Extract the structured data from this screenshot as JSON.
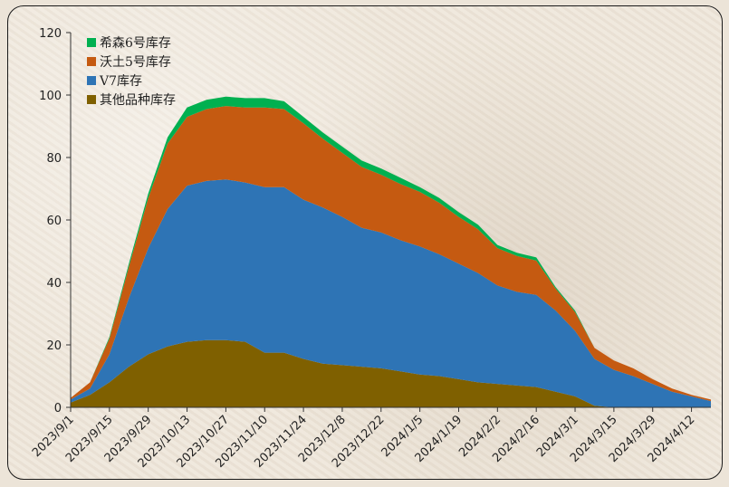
{
  "chart_data": {
    "type": "area",
    "stacked": true,
    "title": "",
    "xlabel": "",
    "ylabel": "",
    "ylim": [
      0,
      120
    ],
    "yticks": [
      0,
      20,
      40,
      60,
      80,
      100,
      120
    ],
    "grid": false,
    "legend_position": "top-left",
    "x": [
      "2023/9/1",
      "2023/9/8",
      "2023/9/15",
      "2023/9/22",
      "2023/9/29",
      "2023/10/6",
      "2023/10/13",
      "2023/10/20",
      "2023/10/27",
      "2023/11/3",
      "2023/11/10",
      "2023/11/17",
      "2023/11/24",
      "2023/12/1",
      "2023/12/8",
      "2023/12/15",
      "2023/12/22",
      "2023/12/29",
      "2024/1/5",
      "2024/1/12",
      "2024/1/19",
      "2024/1/26",
      "2024/2/2",
      "2024/2/9",
      "2024/2/16",
      "2024/2/23",
      "2024/3/1",
      "2024/3/8",
      "2024/3/15",
      "2024/3/22",
      "2024/3/29",
      "2024/4/5",
      "2024/4/12",
      "2024/4/19"
    ],
    "x_tick_labels": [
      "2023/9/1",
      "2023/9/15",
      "2023/9/29",
      "2023/10/13",
      "2023/10/27",
      "2023/11/10",
      "2023/11/24",
      "2023/12/8",
      "2023/12/22",
      "2024/1/5",
      "2024/1/19",
      "2024/2/2",
      "2024/2/16",
      "2024/3/1",
      "2024/3/15",
      "2024/3/29",
      "2024/4/12"
    ],
    "series": [
      {
        "name": "其他品种库存",
        "color": "#7f6000",
        "values": [
          1.5,
          4,
          8,
          13,
          17,
          19.5,
          21,
          21.5,
          21.5,
          21,
          17.5,
          17.5,
          15.5,
          14,
          13.5,
          13,
          12.5,
          11.5,
          10.5,
          10,
          9,
          8,
          7.5,
          7,
          6.5,
          5,
          3.5,
          0.5,
          0,
          0,
          0,
          0,
          0,
          0
        ]
      },
      {
        "name": "V7库存",
        "color": "#2e74b5",
        "values": [
          1,
          2,
          9,
          22,
          34,
          44,
          50,
          51,
          51.5,
          51,
          53,
          53,
          51,
          50,
          47.5,
          44.5,
          43.5,
          42,
          41,
          39,
          37,
          35,
          31.5,
          30,
          29.5,
          26,
          21,
          15,
          12,
          10,
          7.5,
          5,
          3.5,
          2
        ]
      },
      {
        "name": "沃土5号库存",
        "color": "#c55a11",
        "values": [
          0.5,
          2,
          5,
          10,
          16,
          21,
          22,
          23,
          23.5,
          24,
          25.5,
          25,
          24.5,
          22,
          20.5,
          19.5,
          18.5,
          18,
          17.5,
          16.5,
          15,
          14,
          12,
          11.5,
          11,
          7,
          6,
          3.5,
          3,
          2.5,
          1.5,
          1,
          0.5,
          0.5
        ]
      },
      {
        "name": "希森6号库存",
        "color": "#00b050",
        "values": [
          0,
          0,
          0.5,
          1,
          1.5,
          2,
          3,
          3,
          3,
          3,
          3,
          2.5,
          2,
          2,
          2,
          2,
          2,
          2,
          1.5,
          1.5,
          1.5,
          1.5,
          1,
          1,
          1,
          0.5,
          0.5,
          0,
          0,
          0,
          0,
          0,
          0,
          0
        ]
      }
    ]
  }
}
